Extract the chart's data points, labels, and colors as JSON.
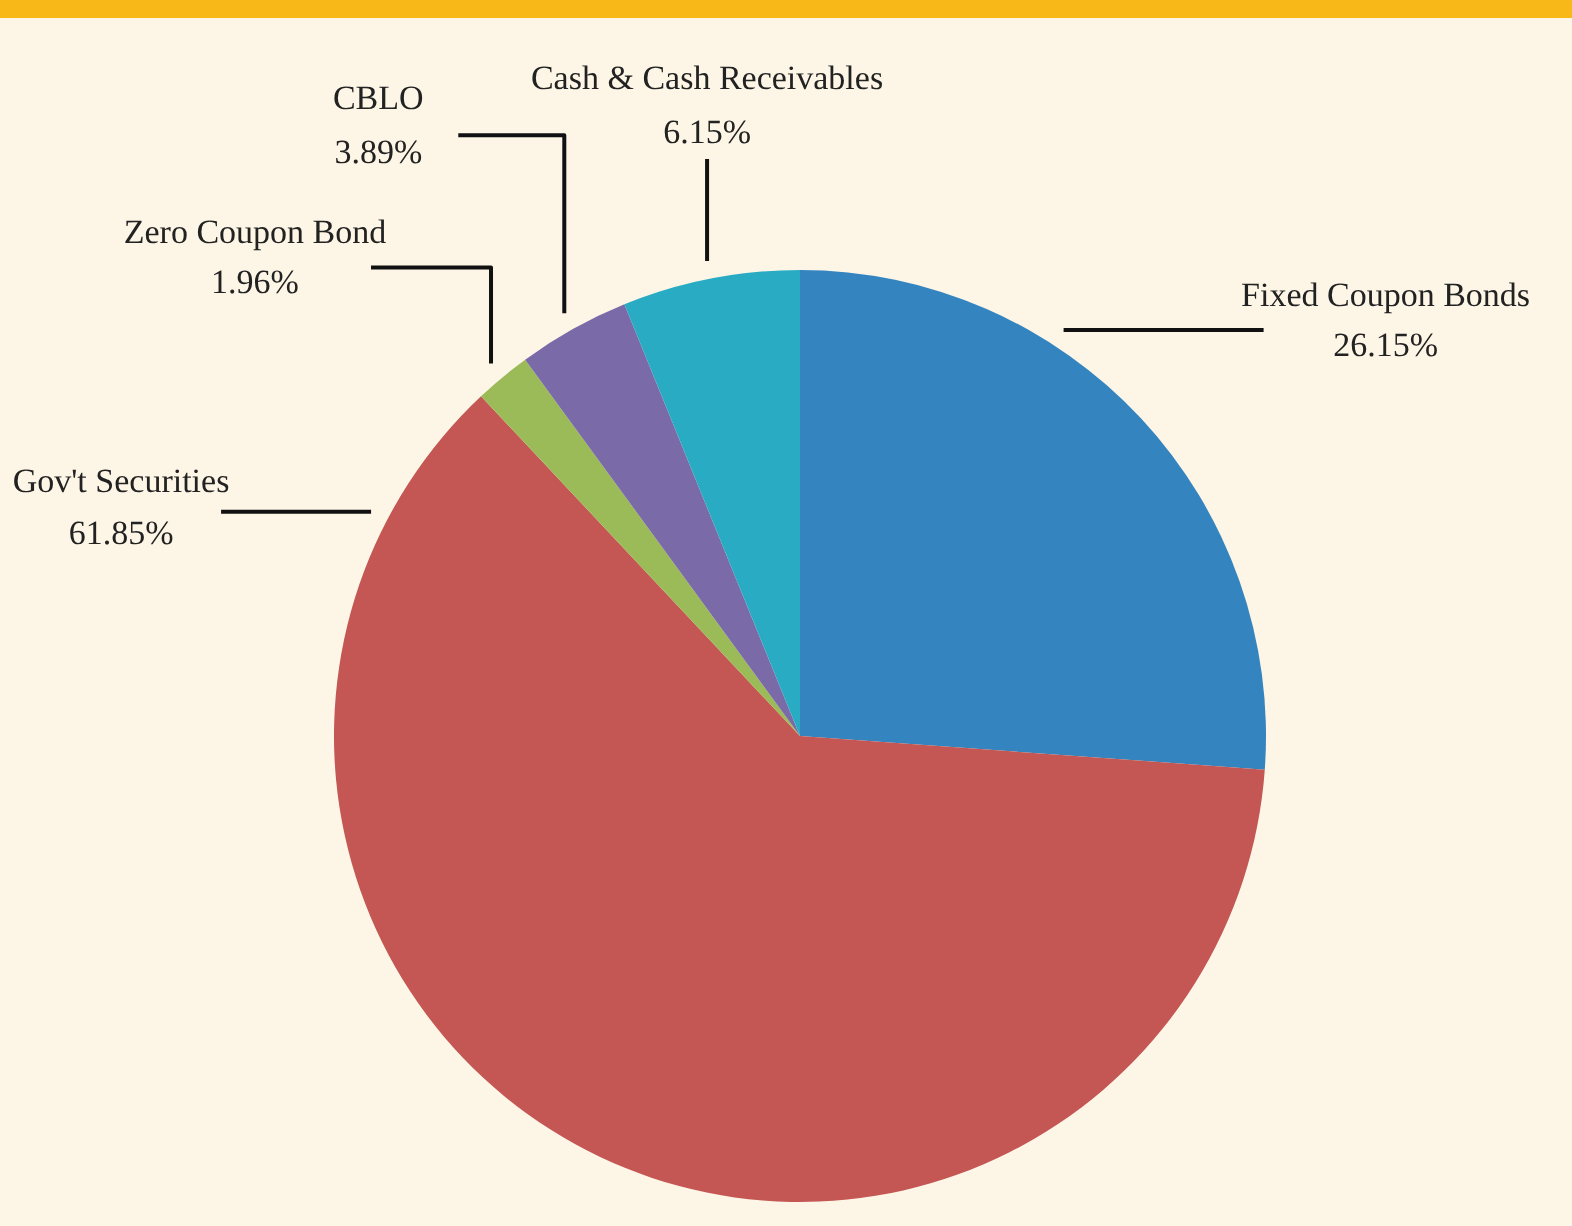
{
  "chart_data": {
    "type": "pie",
    "categories": [
      "Fixed Coupon Bonds",
      "Gov't Securities",
      "Zero Coupon Bond",
      "CBLO",
      "Cash & Cash Receivables"
    ],
    "values": [
      26.15,
      61.85,
      1.96,
      3.89,
      6.15
    ],
    "colors": [
      "#3484c0",
      "#c45653",
      "#9bbb59",
      "#7a6aa8",
      "#2aabc4"
    ],
    "value_labels": [
      "26.15%",
      "61.85%",
      "1.96%",
      "3.89%",
      "6.15%"
    ],
    "legend": false
  }
}
